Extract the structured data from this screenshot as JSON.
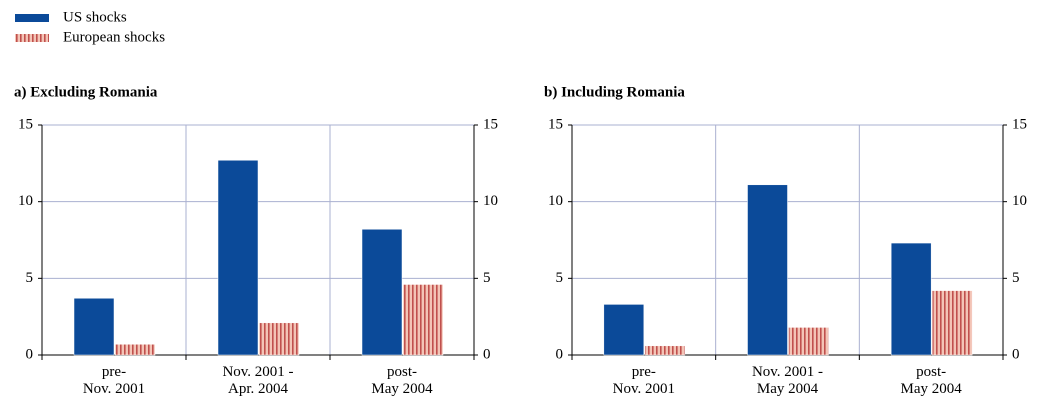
{
  "chart_data": [
    {
      "type": "bar",
      "title": "a) Excluding Romania",
      "categories": [
        "pre-\nNov. 2001",
        "Nov. 2001 -\nApr. 2004",
        "post-\nMay 2004"
      ],
      "series": [
        {
          "name": "US shocks",
          "color": "#0b4a99",
          "values": [
            3.7,
            12.7,
            8.2
          ]
        },
        {
          "name": "European shocks",
          "color": "#c0504d",
          "hatch": "vertical",
          "values": [
            0.7,
            2.1,
            4.6
          ]
        }
      ],
      "ylim": [
        0,
        15
      ],
      "yticks": [
        0,
        5,
        10,
        15
      ],
      "grid": true
    },
    {
      "type": "bar",
      "title": "b) Including Romania",
      "categories": [
        "pre-\nNov. 2001",
        "Nov. 2001 -\nMay 2004",
        "post-\nMay 2004"
      ],
      "series": [
        {
          "color": "#0b4a99",
          "values": [
            3.3,
            11.1,
            7.3
          ]
        },
        {
          "color": "#c0504d",
          "hatch": "vertical",
          "values": [
            0.6,
            1.8,
            4.2
          ]
        }
      ],
      "ylim": [
        0,
        15
      ],
      "yticks": [
        0,
        5,
        10,
        15
      ],
      "grid": true
    }
  ]
}
